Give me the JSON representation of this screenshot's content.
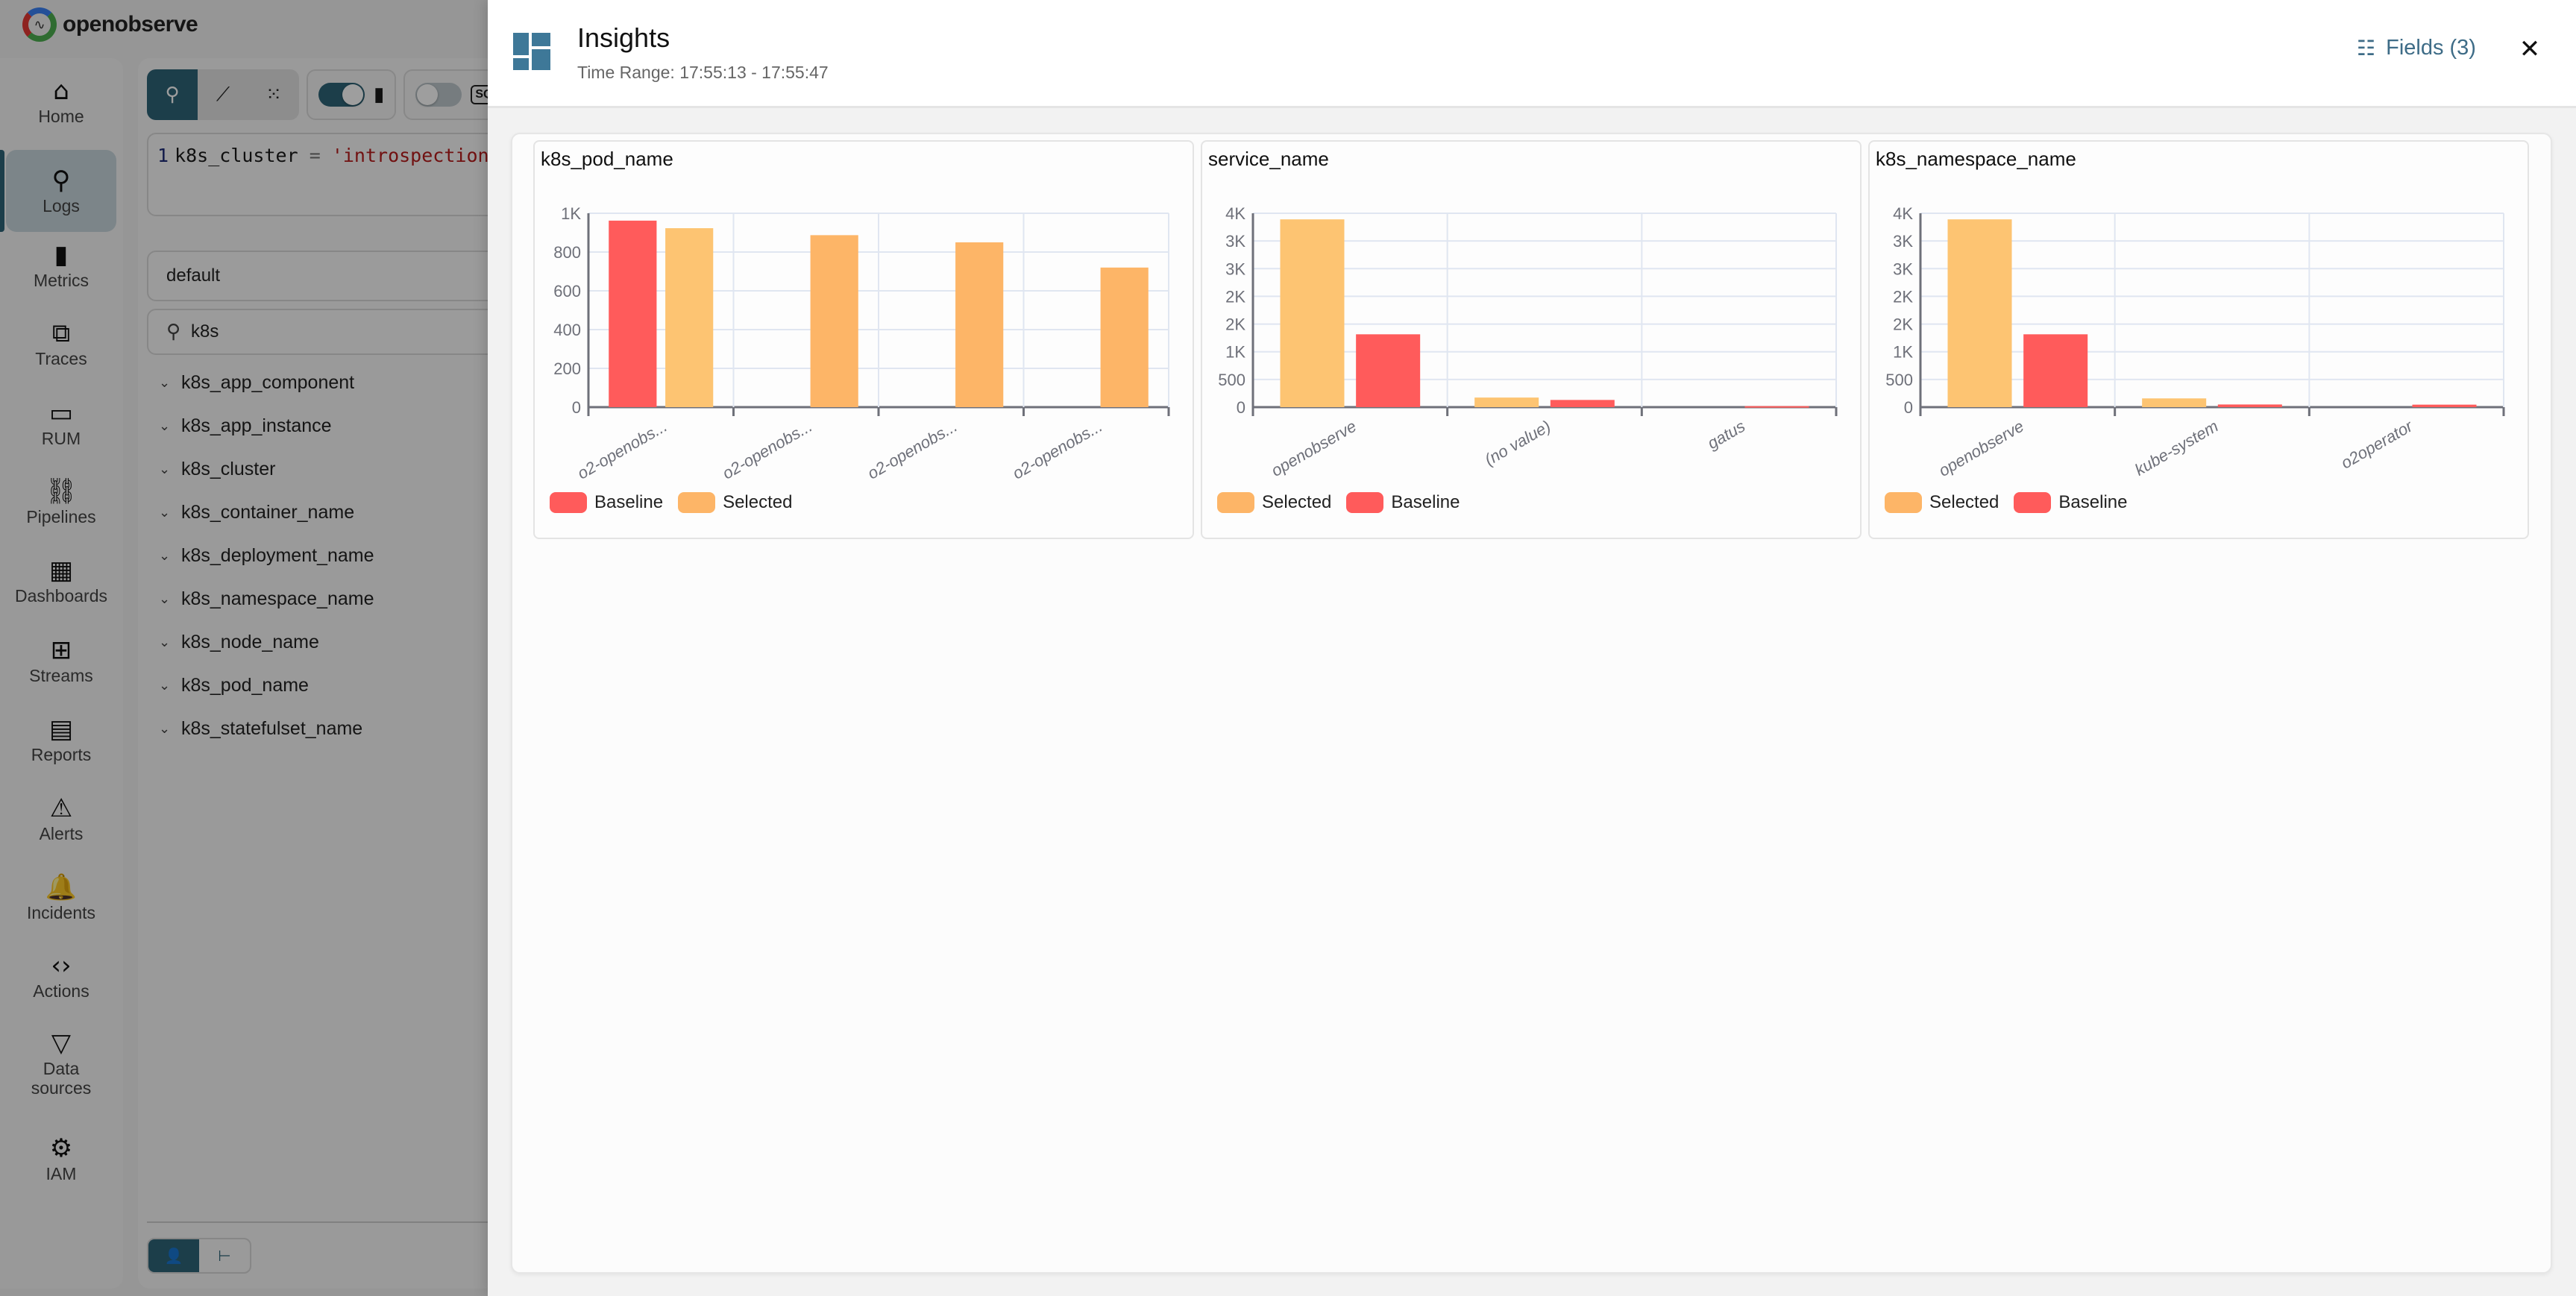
{
  "app": {
    "brand": "openobserve",
    "sidebar": {
      "items": [
        {
          "label": "Home",
          "icon": "home-icon",
          "glyph": "⌂"
        },
        {
          "label": "Logs",
          "icon": "search-icon",
          "glyph": "⚲",
          "active": true
        },
        {
          "label": "Metrics",
          "icon": "bar-chart-icon",
          "glyph": "▮"
        },
        {
          "label": "Traces",
          "icon": "traces-icon",
          "glyph": "⧉"
        },
        {
          "label": "RUM",
          "icon": "devices-icon",
          "glyph": "▭"
        },
        {
          "label": "Pipelines",
          "icon": "pipeline-icon",
          "glyph": "⛓"
        },
        {
          "label": "Dashboards",
          "icon": "dashboard-icon",
          "glyph": "▦"
        },
        {
          "label": "Streams",
          "icon": "grid-icon",
          "glyph": "⊞"
        },
        {
          "label": "Reports",
          "icon": "document-icon",
          "glyph": "▤"
        },
        {
          "label": "Alerts",
          "icon": "warning-icon",
          "glyph": "⚠"
        },
        {
          "label": "Incidents",
          "icon": "bell-ringing-icon",
          "glyph": "🔔"
        },
        {
          "label": "Actions",
          "icon": "code-icon",
          "glyph": "‹›"
        },
        {
          "label": "Data sources",
          "icon": "filter-icon",
          "glyph": "▽"
        },
        {
          "label": "IAM",
          "icon": "user-gear-icon",
          "glyph": "⚙"
        }
      ]
    },
    "query": {
      "line_number": "1",
      "field": "k8s_cluster",
      "operator": "=",
      "value": "'introspection'"
    },
    "stream_select": {
      "value": "default"
    },
    "field_search": {
      "value": "k8s"
    },
    "fields": [
      "k8s_app_component",
      "k8s_app_instance",
      "k8s_cluster",
      "k8s_container_name",
      "k8s_deployment_name",
      "k8s_namespace_name",
      "k8s_node_name",
      "k8s_pod_name",
      "k8s_statefulset_name"
    ],
    "toolbar": {
      "sql_label": "SQ"
    }
  },
  "insights": {
    "title": "Insights",
    "time_range": "Time Range: 17:55:13 - 17:55:47",
    "fields_button": "Fields (3)",
    "close_label": "✕"
  },
  "colors": {
    "baseline": "#ff5b5b",
    "selected": "#fdb567",
    "selected_light": "#fdc472",
    "accent": "#2e6478",
    "header_icon": "#3e7898"
  },
  "chart_data": [
    {
      "type": "bar",
      "title": "k8s_pod_name",
      "categories": [
        "o2-openobs...",
        "o2-openobs...",
        "o2-openobs...",
        "o2-openobs..."
      ],
      "series": [
        {
          "name": "Baseline",
          "values": [
            962,
            0,
            0,
            0
          ]
        },
        {
          "name": "Selected",
          "values": [
            923,
            887,
            850,
            720
          ]
        }
      ],
      "legend_order": [
        "Baseline",
        "Selected"
      ],
      "yticks": [
        "0",
        "200",
        "400",
        "600",
        "800",
        "1K"
      ],
      "ylim": [
        0,
        1000
      ],
      "xlabel": "",
      "ylabel": "",
      "grid": true,
      "legend_position": "bottom-left"
    },
    {
      "type": "bar",
      "title": "service_name",
      "categories": [
        "openobserve",
        "(no value)",
        "gatus"
      ],
      "series": [
        {
          "name": "Selected",
          "values": [
            3390,
            173,
            0
          ]
        },
        {
          "name": "Baseline",
          "values": [
            1315,
            130,
            18
          ]
        }
      ],
      "legend_order": [
        "Selected",
        "Baseline"
      ],
      "yticks": [
        "0",
        "500",
        "1K",
        "2K",
        "2K",
        "3K",
        "3K",
        "4K"
      ],
      "ylim": [
        0,
        3500
      ],
      "xlabel": "",
      "ylabel": "",
      "grid": true,
      "legend_position": "bottom-left"
    },
    {
      "type": "bar",
      "title": "k8s_namespace_name",
      "categories": [
        "openobserve",
        "kube-system",
        "o2operator"
      ],
      "series": [
        {
          "name": "Selected",
          "values": [
            3390,
            158,
            0
          ]
        },
        {
          "name": "Baseline",
          "values": [
            1315,
            48,
            45
          ]
        }
      ],
      "legend_order": [
        "Selected",
        "Baseline"
      ],
      "yticks": [
        "0",
        "500",
        "1K",
        "2K",
        "2K",
        "3K",
        "3K",
        "4K"
      ],
      "ylim": [
        0,
        3500
      ],
      "xlabel": "",
      "ylabel": "",
      "grid": true,
      "legend_position": "bottom-left"
    }
  ]
}
